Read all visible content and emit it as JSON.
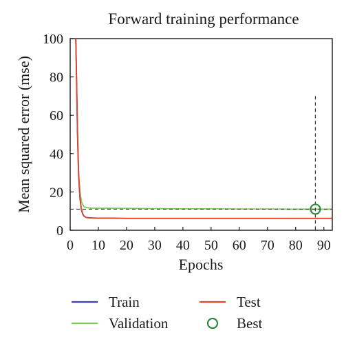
{
  "chart_data": {
    "type": "line",
    "title": "Forward training performance",
    "xlabel": "Epochs",
    "ylabel": "Mean squared error (mse)",
    "xlim": [
      0,
      93
    ],
    "ylim": [
      0,
      100
    ],
    "xticks": [
      0,
      10,
      20,
      30,
      40,
      50,
      60,
      70,
      80,
      90
    ],
    "yticks": [
      0,
      20,
      40,
      60,
      80,
      100
    ],
    "grid": false,
    "legend_position": "bottom",
    "series": [
      {
        "name": "Train",
        "color": "#3a3fb5",
        "x": [
          2,
          2.3,
          2.6,
          3,
          3.5,
          4,
          4.5,
          5,
          5.5,
          6,
          7,
          8,
          10,
          15,
          20,
          30,
          40,
          50,
          60,
          70,
          80,
          90,
          93
        ],
        "y": [
          100,
          75,
          50,
          28,
          16,
          10.5,
          8.2,
          7.2,
          6.8,
          6.6,
          6.5,
          6.4,
          6.3,
          6.3,
          6.2,
          6.2,
          6.2,
          6.2,
          6.2,
          6.2,
          6.2,
          6.2,
          6.2
        ]
      },
      {
        "name": "Test",
        "color": "#e5452d",
        "x": [
          2,
          2.3,
          2.6,
          3,
          3.5,
          4,
          4.5,
          5,
          5.5,
          6,
          7,
          8,
          10,
          15,
          20,
          30,
          40,
          50,
          60,
          70,
          80,
          90,
          93
        ],
        "y": [
          100,
          76,
          51,
          29,
          16.5,
          11,
          8.4,
          7.3,
          6.8,
          6.6,
          6.5,
          6.4,
          6.3,
          6.3,
          6.2,
          6.2,
          6.2,
          6.2,
          6.2,
          6.2,
          6.2,
          6.2,
          6.2
        ]
      },
      {
        "name": "Validation",
        "color": "#7acc5a",
        "x": [
          2,
          2.3,
          2.6,
          3,
          3.5,
          4,
          4.5,
          5,
          6,
          7,
          8,
          10,
          20,
          30,
          40,
          50,
          60,
          70,
          80,
          87,
          93
        ],
        "y": [
          100,
          78,
          52,
          30,
          19.5,
          15,
          13.2,
          12.2,
          11.8,
          11.6,
          11.5,
          11.5,
          11.4,
          11.3,
          11.2,
          11.2,
          11.1,
          11.1,
          11.0,
          11.0,
          11.0
        ]
      }
    ],
    "best": {
      "name": "Best",
      "x": 87,
      "y": 11,
      "color": "#2e8b3e"
    },
    "best_vline_top": 70,
    "legend": [
      {
        "label": "Train",
        "kind": "line",
        "color": "#3a3fb5"
      },
      {
        "label": "Test",
        "kind": "line",
        "color": "#e5452d"
      },
      {
        "label": "Validation",
        "kind": "line",
        "color": "#7acc5a"
      },
      {
        "label": "Best",
        "kind": "circle",
        "color": "#2e8b3e"
      }
    ]
  }
}
